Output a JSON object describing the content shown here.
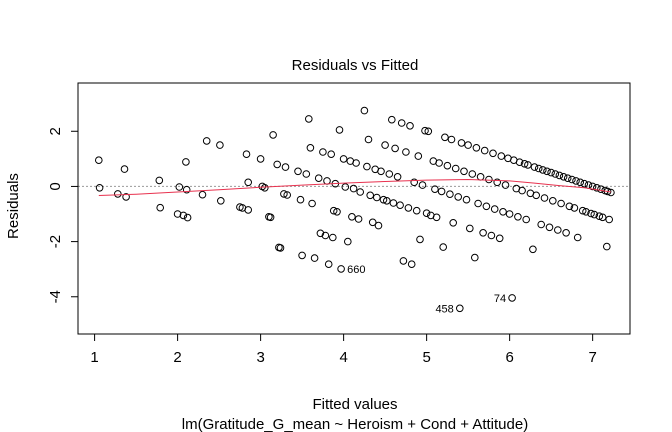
{
  "chart_data": {
    "type": "scatter",
    "title": "Residuals vs Fitted",
    "xlabel": "Fitted values",
    "ylabel": "Residuals",
    "subtitle": "lm(Gratitude_G_mean ~ Heroism + Cond + Attitude)",
    "xlim": [
      0.8,
      7.45
    ],
    "ylim": [
      -5.35,
      3.75
    ],
    "x_ticks": [
      1,
      2,
      3,
      4,
      5,
      6,
      7
    ],
    "y_ticks": [
      -4,
      -2,
      0,
      2
    ],
    "grid": false,
    "zero_line": 0,
    "colors": {
      "points": "#000000",
      "smooth": "#e8324f",
      "zero_line": "#999999"
    },
    "outlier_labels": [
      {
        "label": "660",
        "x": 3.97,
        "y": -2.99
      },
      {
        "label": "458",
        "x": 5.4,
        "y": -4.42
      },
      {
        "label": "74",
        "x": 6.03,
        "y": -4.04
      }
    ],
    "points": [
      [
        1.05,
        0.95
      ],
      [
        1.06,
        -0.05
      ],
      [
        1.28,
        -0.27
      ],
      [
        1.36,
        0.63
      ],
      [
        1.38,
        -0.38
      ],
      [
        1.78,
        0.22
      ],
      [
        1.79,
        -0.77
      ],
      [
        2.0,
        -1.0
      ],
      [
        2.02,
        -0.02
      ],
      [
        2.07,
        -1.05
      ],
      [
        2.1,
        0.89
      ],
      [
        2.11,
        -0.12
      ],
      [
        2.12,
        -1.13
      ],
      [
        2.3,
        -0.3
      ],
      [
        2.35,
        1.65
      ],
      [
        2.51,
        1.5
      ],
      [
        2.52,
        -0.52
      ],
      [
        2.75,
        -0.75
      ],
      [
        2.78,
        -0.78
      ],
      [
        2.83,
        1.17
      ],
      [
        2.85,
        -0.85
      ],
      [
        2.85,
        0.15
      ],
      [
        3.0,
        1.0
      ],
      [
        3.02,
        0.0
      ],
      [
        3.05,
        -0.05
      ],
      [
        3.1,
        -1.1
      ],
      [
        3.12,
        -1.12
      ],
      [
        3.15,
        1.87
      ],
      [
        3.2,
        0.8
      ],
      [
        3.22,
        -2.21
      ],
      [
        3.24,
        -2.23
      ],
      [
        3.28,
        -0.27
      ],
      [
        3.3,
        0.7
      ],
      [
        3.32,
        -0.31
      ],
      [
        3.45,
        0.55
      ],
      [
        3.48,
        -0.48
      ],
      [
        3.5,
        -2.5
      ],
      [
        3.55,
        0.45
      ],
      [
        3.58,
        2.45
      ],
      [
        3.6,
        1.4
      ],
      [
        3.62,
        -0.62
      ],
      [
        3.65,
        -2.6
      ],
      [
        3.7,
        0.3
      ],
      [
        3.72,
        -1.7
      ],
      [
        3.75,
        1.25
      ],
      [
        3.78,
        -1.78
      ],
      [
        3.8,
        0.2
      ],
      [
        3.82,
        -2.82
      ],
      [
        3.85,
        1.17
      ],
      [
        3.87,
        -1.85
      ],
      [
        3.88,
        -0.88
      ],
      [
        3.9,
        0.1
      ],
      [
        3.92,
        -0.92
      ],
      [
        3.95,
        2.05
      ],
      [
        3.97,
        -2.99
      ],
      [
        4.0,
        1.0
      ],
      [
        4.02,
        -0.02
      ],
      [
        4.05,
        -2.0
      ],
      [
        4.08,
        0.92
      ],
      [
        4.1,
        -1.1
      ],
      [
        4.12,
        -0.08
      ],
      [
        4.15,
        0.85
      ],
      [
        4.18,
        -1.18
      ],
      [
        4.2,
        -0.2
      ],
      [
        4.25,
        2.75
      ],
      [
        4.28,
        0.72
      ],
      [
        4.3,
        1.7
      ],
      [
        4.32,
        -0.32
      ],
      [
        4.35,
        -1.3
      ],
      [
        4.38,
        0.62
      ],
      [
        4.4,
        -0.4
      ],
      [
        4.42,
        -1.42
      ],
      [
        4.45,
        0.55
      ],
      [
        4.48,
        -0.48
      ],
      [
        4.5,
        1.5
      ],
      [
        4.52,
        -0.52
      ],
      [
        4.55,
        0.45
      ],
      [
        4.58,
        2.42
      ],
      [
        4.6,
        -0.6
      ],
      [
        4.62,
        1.38
      ],
      [
        4.65,
        0.35
      ],
      [
        4.68,
        -0.68
      ],
      [
        4.7,
        2.3
      ],
      [
        4.72,
        -2.7
      ],
      [
        4.75,
        1.25
      ],
      [
        4.78,
        -0.78
      ],
      [
        4.8,
        2.2
      ],
      [
        4.82,
        -2.82
      ],
      [
        4.85,
        0.15
      ],
      [
        4.88,
        -0.88
      ],
      [
        4.9,
        1.1
      ],
      [
        4.92,
        -1.92
      ],
      [
        4.95,
        0.05
      ],
      [
        4.98,
        2.02
      ],
      [
        5.0,
        -0.97
      ],
      [
        5.02,
        2.0
      ],
      [
        5.05,
        -1.05
      ],
      [
        5.08,
        0.92
      ],
      [
        5.1,
        -0.1
      ],
      [
        5.12,
        -1.12
      ],
      [
        5.15,
        0.85
      ],
      [
        5.18,
        -0.18
      ],
      [
        5.2,
        -2.2
      ],
      [
        5.22,
        1.78
      ],
      [
        5.25,
        0.75
      ],
      [
        5.28,
        -0.28
      ],
      [
        5.3,
        1.7
      ],
      [
        5.32,
        -1.32
      ],
      [
        5.35,
        0.65
      ],
      [
        5.38,
        -0.38
      ],
      [
        5.4,
        -4.42
      ],
      [
        5.42,
        1.58
      ],
      [
        5.45,
        0.55
      ],
      [
        5.48,
        -0.48
      ],
      [
        5.5,
        1.5
      ],
      [
        5.52,
        -1.52
      ],
      [
        5.55,
        0.45
      ],
      [
        5.58,
        -2.58
      ],
      [
        5.6,
        1.4
      ],
      [
        5.62,
        -0.62
      ],
      [
        5.65,
        0.35
      ],
      [
        5.68,
        -1.68
      ],
      [
        5.7,
        1.3
      ],
      [
        5.72,
        -0.72
      ],
      [
        5.75,
        0.25
      ],
      [
        5.78,
        -1.78
      ],
      [
        5.8,
        1.2
      ],
      [
        5.82,
        -0.82
      ],
      [
        5.85,
        0.15
      ],
      [
        5.88,
        -1.88
      ],
      [
        5.9,
        1.1
      ],
      [
        5.92,
        -0.92
      ],
      [
        5.95,
        0.05
      ],
      [
        5.98,
        1.02
      ],
      [
        6.0,
        -1.0
      ],
      [
        6.03,
        -4.04
      ],
      [
        6.05,
        0.95
      ],
      [
        6.08,
        -0.08
      ],
      [
        6.1,
        -1.1
      ],
      [
        6.12,
        0.88
      ],
      [
        6.15,
        -0.15
      ],
      [
        6.18,
        0.82
      ],
      [
        6.2,
        -1.2
      ],
      [
        6.22,
        0.78
      ],
      [
        6.25,
        -0.25
      ],
      [
        6.28,
        -2.28
      ],
      [
        6.3,
        0.7
      ],
      [
        6.32,
        -0.32
      ],
      [
        6.35,
        0.65
      ],
      [
        6.38,
        -1.38
      ],
      [
        6.4,
        0.6
      ],
      [
        6.42,
        -0.42
      ],
      [
        6.45,
        0.55
      ],
      [
        6.48,
        -1.48
      ],
      [
        6.5,
        0.5
      ],
      [
        6.52,
        -0.52
      ],
      [
        6.55,
        0.45
      ],
      [
        6.58,
        -1.58
      ],
      [
        6.6,
        0.4
      ],
      [
        6.62,
        -0.62
      ],
      [
        6.65,
        0.35
      ],
      [
        6.68,
        -1.68
      ],
      [
        6.7,
        0.3
      ],
      [
        6.72,
        -0.72
      ],
      [
        6.75,
        0.25
      ],
      [
        6.78,
        -0.78
      ],
      [
        6.8,
        0.2
      ],
      [
        6.82,
        -1.85
      ],
      [
        6.85,
        0.15
      ],
      [
        6.88,
        -0.88
      ],
      [
        6.9,
        0.1
      ],
      [
        6.92,
        -0.92
      ],
      [
        6.95,
        0.05
      ],
      [
        6.98,
        -0.98
      ],
      [
        7.0,
        0.0
      ],
      [
        7.02,
        -1.02
      ],
      [
        7.05,
        -0.05
      ],
      [
        7.08,
        -1.08
      ],
      [
        7.1,
        -0.1
      ],
      [
        7.12,
        -1.12
      ],
      [
        7.15,
        -0.15
      ],
      [
        7.17,
        -2.18
      ],
      [
        7.18,
        -0.18
      ],
      [
        7.2,
        -1.2
      ],
      [
        7.22,
        -0.22
      ]
    ],
    "smooth_line": [
      [
        1.05,
        -0.33
      ],
      [
        1.5,
        -0.28
      ],
      [
        2.0,
        -0.2
      ],
      [
        2.5,
        -0.12
      ],
      [
        3.0,
        -0.03
      ],
      [
        3.5,
        0.05
      ],
      [
        4.0,
        0.12
      ],
      [
        4.5,
        0.18
      ],
      [
        5.0,
        0.23
      ],
      [
        5.5,
        0.25
      ],
      [
        6.0,
        0.2
      ],
      [
        6.3,
        0.12
      ],
      [
        6.6,
        0.03
      ],
      [
        6.9,
        -0.05
      ],
      [
        7.22,
        -0.2
      ]
    ]
  }
}
